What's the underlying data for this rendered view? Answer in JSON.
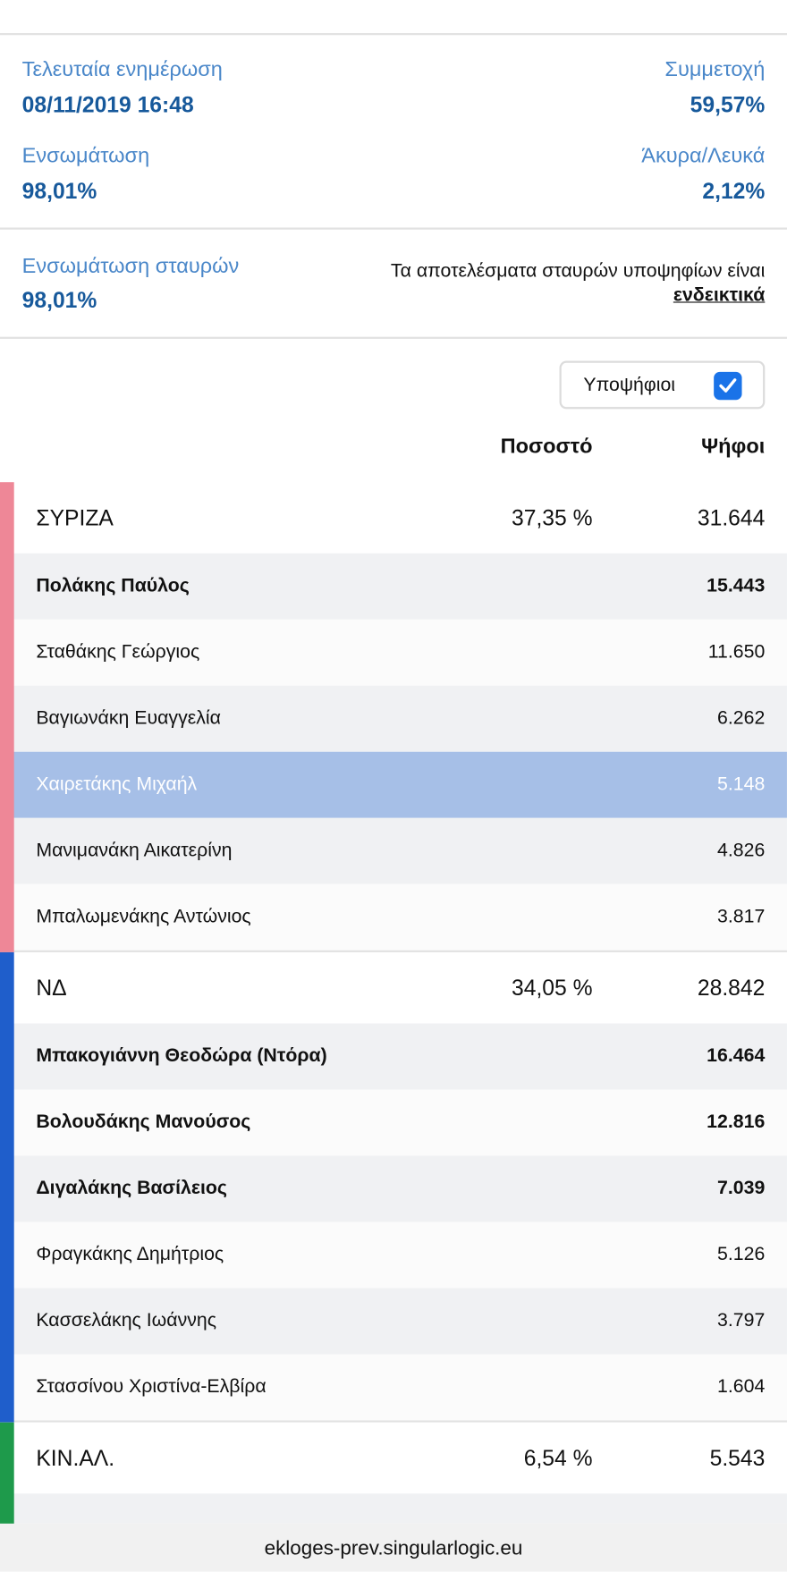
{
  "header": {
    "last_update_label": "Τελευταία ενημέρωση",
    "last_update": "08/11/2019 16:48",
    "turnout_label": "Συμμετοχή",
    "turnout": "59,57%",
    "integration_label": "Ενσωμάτωση",
    "integration": "98,01%",
    "invalid_label": "Άκυρα/Λευκά",
    "invalid": "2,12%"
  },
  "cross": {
    "label": "Ενσωμάτωση σταυρών",
    "value": "98,01%",
    "note": "Τα αποτελέσματα σταυρών υποψηφίων είναι",
    "note_link": "ενδεικτικά"
  },
  "filter": {
    "label": "Υποψήφιοι",
    "checked": true
  },
  "table": {
    "columns": [
      "Ποσοστό",
      "Ψήφοι"
    ],
    "parties": [
      {
        "name": "ΣΥΡΙΖΑ",
        "percent": "37,35 %",
        "votes": "31.644",
        "color": "#ee8797",
        "candidates": [
          {
            "name": "Πολάκης Παύλος",
            "votes": "15.443",
            "bold": true
          },
          {
            "name": "Σταθάκης Γεώργιος",
            "votes": "11.650"
          },
          {
            "name": "Βαγιωνάκη Ευαγγελία",
            "votes": "6.262"
          },
          {
            "name": "Χαιρετάκης Μιχαήλ",
            "votes": "5.148",
            "highlighted": true
          },
          {
            "name": "Μανιμανάκη Αικατερίνη",
            "votes": "4.826"
          },
          {
            "name": "Μπαλωμενάκης Αντώνιος",
            "votes": "3.817"
          }
        ]
      },
      {
        "name": "ΝΔ",
        "percent": "34,05 %",
        "votes": "28.842",
        "color": "#1f5ecb",
        "candidates": [
          {
            "name": "Μπακογιάννη Θεοδώρα (Ντόρα)",
            "votes": "16.464",
            "bold": true
          },
          {
            "name": "Βολουδάκης Μανούσος",
            "votes": "12.816",
            "bold": true
          },
          {
            "name": "Διγαλάκης Βασίλειος",
            "votes": "7.039",
            "bold": true
          },
          {
            "name": "Φραγκάκης Δημήτριος",
            "votes": "5.126"
          },
          {
            "name": "Κασσελάκης Ιωάννης",
            "votes": "3.797"
          },
          {
            "name": "Στασσίνου Χριστίνα-Ελβίρα",
            "votes": "1.604"
          }
        ]
      },
      {
        "name": "ΚΙΝ.ΑΛ.",
        "percent": "6,54 %",
        "votes": "5.543",
        "color": "#1e9a4b",
        "candidates": []
      }
    ]
  },
  "footer": {
    "url": "ekloges-prev.singularlogic.eu"
  }
}
